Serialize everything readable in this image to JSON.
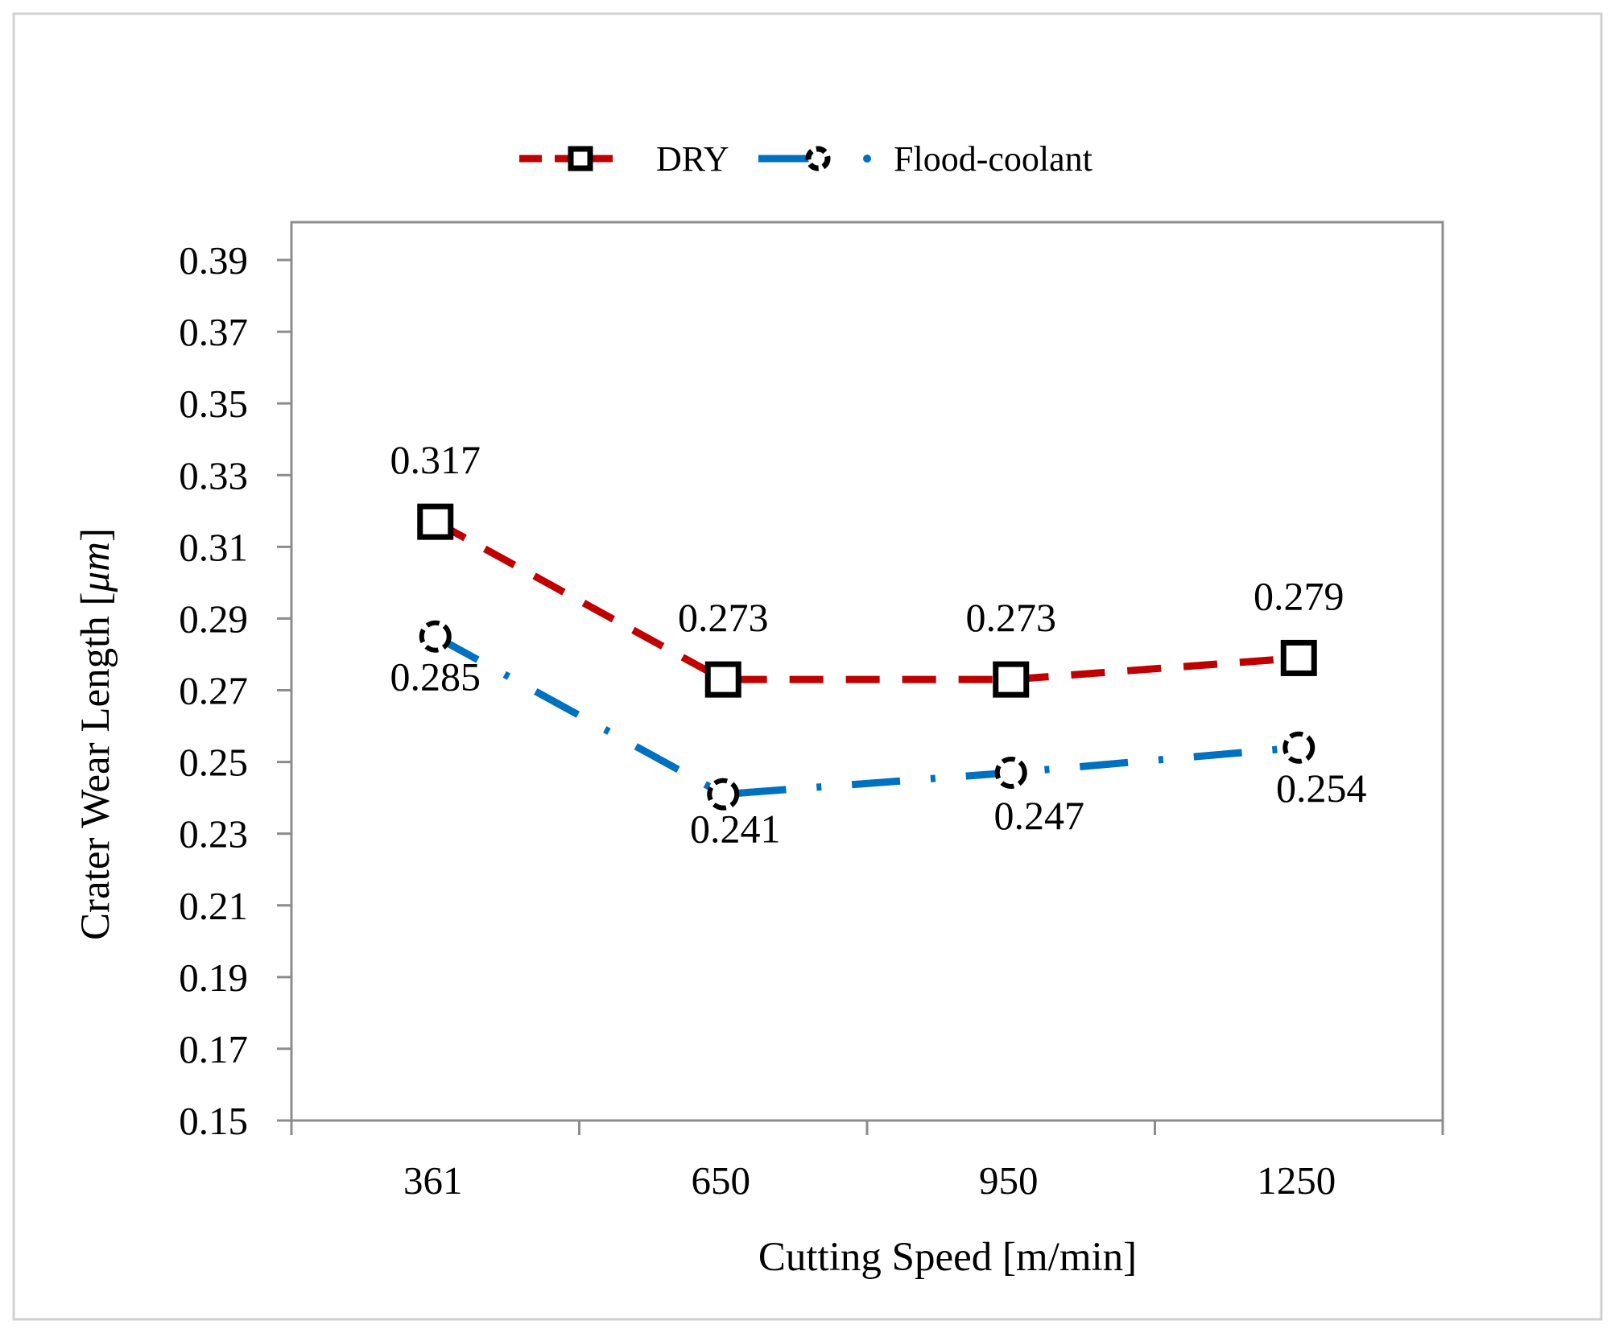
{
  "chart_data": {
    "type": "line",
    "title": "",
    "xlabel": "Cutting Speed [m/min]",
    "ylabel_prefix": "Crater Wear Length [",
    "ylabel_unit": "μm",
    "ylabel_suffix": "]",
    "categories": [
      "361",
      "650",
      "950",
      "1250"
    ],
    "ylim": [
      0.15,
      0.39
    ],
    "yticks": [
      "0.15",
      "0.17",
      "0.19",
      "0.21",
      "0.23",
      "0.25",
      "0.27",
      "0.29",
      "0.31",
      "0.33",
      "0.35",
      "0.37",
      "0.39"
    ],
    "grid": false,
    "legend_position": "top-center",
    "series": [
      {
        "name": "DRY",
        "values": [
          0.317,
          0.273,
          0.273,
          0.279
        ],
        "labels": [
          "0.317",
          "0.273",
          "0.273",
          "0.279"
        ],
        "color": "#C00000",
        "marker": "square",
        "line_style": "dashed"
      },
      {
        "name": "Flood-coolant",
        "values": [
          0.285,
          0.241,
          0.247,
          0.254
        ],
        "labels": [
          "0.285",
          "0.241",
          "0.247",
          "0.254"
        ],
        "color": "#0070C0",
        "marker": "circle",
        "line_style": "dash-dot"
      }
    ]
  }
}
